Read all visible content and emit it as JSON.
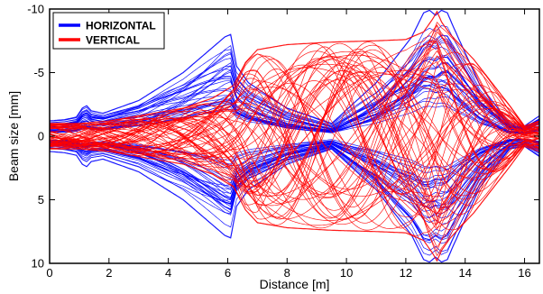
{
  "chart_data": {
    "type": "line",
    "xlabel": "Distance [m]",
    "ylabel": "Beam size [mm]",
    "xlim": [
      0,
      16.5
    ],
    "ylim": [
      -10,
      10
    ],
    "y_axis_inverted": true,
    "grid": false,
    "legend_position": "top-left",
    "x_ticks": [
      "0",
      "2",
      "4",
      "6",
      "8",
      "10",
      "12",
      "14",
      "16"
    ],
    "y_ticks": [
      "-10",
      "-5",
      "0",
      "5",
      "10"
    ],
    "series": [
      {
        "name": "HORIZONTAL",
        "color": "#0000ff",
        "envelope": {
          "x": [
            0,
            0.5,
            0.9,
            1.1,
            1.25,
            1.4,
            1.8,
            3,
            4.5,
            5.9,
            6.1,
            6.3,
            6.7,
            8,
            9.5,
            11,
            12.2,
            12.6,
            12.8,
            13.0,
            13.2,
            13.4,
            13.6,
            14.5,
            15.5,
            16,
            16.5
          ],
          "y": [
            1.2,
            1.3,
            1.5,
            2.2,
            2.4,
            2.0,
            1.8,
            2.8,
            5.0,
            7.8,
            8.0,
            5.5,
            4.2,
            2.2,
            1.0,
            4.2,
            7.8,
            9.7,
            9.9,
            9.5,
            9.9,
            9.7,
            8.6,
            4.0,
            1.0,
            0.8,
            1.6
          ]
        }
      },
      {
        "name": "VERTICAL",
        "color": "#ff0000",
        "envelope": {
          "x": [
            0,
            1,
            2,
            3,
            4.5,
            5.5,
            6.2,
            6.6,
            7.0,
            8,
            9.5,
            11,
            12,
            12.6,
            12.9,
            13.05,
            13.2,
            13.5,
            14.3,
            15.5,
            16,
            16.5
          ],
          "y": [
            1.0,
            1.0,
            1.2,
            1.6,
            2.2,
            3.0,
            4.0,
            5.8,
            6.8,
            7.2,
            7.4,
            7.5,
            7.6,
            8.2,
            9.2,
            9.8,
            9.0,
            8.0,
            6.0,
            2.4,
            0.8,
            1.2
          ]
        }
      }
    ]
  }
}
